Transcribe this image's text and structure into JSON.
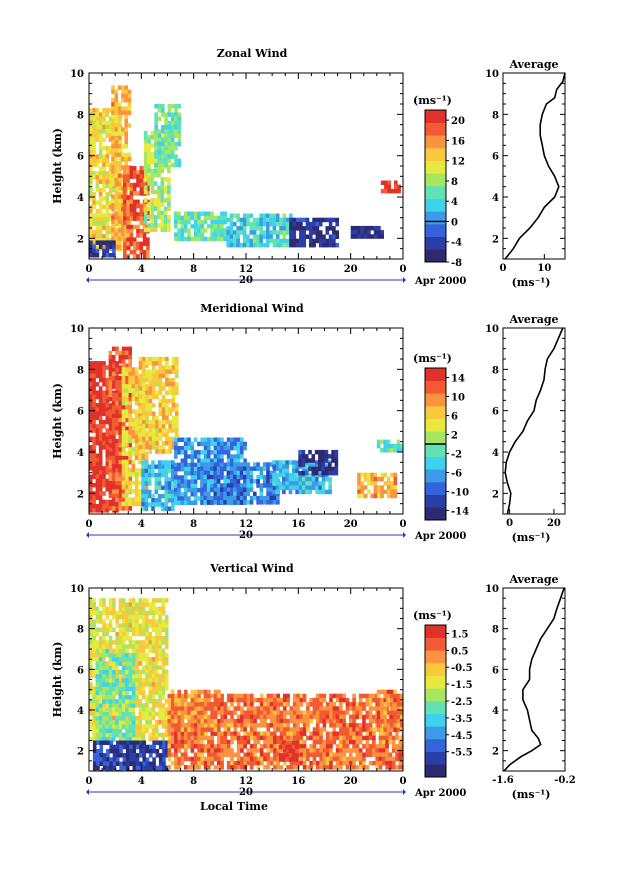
{
  "chart_data": [
    {
      "id": "zonal",
      "type": "heatmap",
      "title": "Zonal Wind",
      "ylabel": "Height (km)",
      "xlim": [
        0,
        24
      ],
      "ylim": [
        1,
        10
      ],
      "xticks": [
        "0",
        "4",
        "8",
        "12",
        "16",
        "20",
        "0"
      ],
      "yticks": [
        "2",
        "4",
        "6",
        "8",
        "10"
      ],
      "date_labels": {
        "day": "20",
        "month": "Apr 2000"
      },
      "colorbar": {
        "unit": "(ms⁻¹)",
        "range": [
          -8,
          22
        ],
        "ticks": [
          "20",
          "16",
          "12",
          "8",
          "4",
          "0",
          "-4",
          "-8"
        ],
        "tick_values": [
          20,
          16,
          12,
          8,
          4,
          0,
          -4,
          -8
        ],
        "marked_value": 0
      },
      "blobs": [
        {
          "t": [
            0,
            2.5
          ],
          "h": [
            1.5,
            8.3
          ],
          "v": 12
        },
        {
          "t": [
            1.7,
            3.2
          ],
          "h": [
            1.5,
            9.4
          ],
          "v": 14
        },
        {
          "t": [
            2.6,
            4.6
          ],
          "h": [
            1.1,
            5.5
          ],
          "v": 19
        },
        {
          "t": [
            4.2,
            6.2
          ],
          "h": [
            2.5,
            7.2
          ],
          "v": 9
        },
        {
          "t": [
            5.0,
            7.0
          ],
          "h": [
            5.5,
            8.5
          ],
          "v": 6
        },
        {
          "t": [
            6.5,
            10.5
          ],
          "h": [
            2.0,
            3.3
          ],
          "v": 6
        },
        {
          "t": [
            10.5,
            15.5
          ],
          "h": [
            1.6,
            3.2
          ],
          "v": 4
        },
        {
          "t": [
            15.3,
            19.0
          ],
          "h": [
            1.6,
            3.0
          ],
          "v": -6
        },
        {
          "t": [
            20.0,
            22.3
          ],
          "h": [
            2.0,
            2.6
          ],
          "v": -7
        },
        {
          "t": [
            0.0,
            2.0
          ],
          "h": [
            1.2,
            1.9
          ],
          "v": -6
        },
        {
          "t": [
            22.3,
            23.8
          ],
          "h": [
            4.2,
            4.8
          ],
          "v": 21
        }
      ],
      "average": {
        "title": "Average",
        "xlabel": "(ms⁻¹)",
        "xlim": [
          0,
          15
        ],
        "xticks": [
          "0",
          "10"
        ],
        "xtick_values": [
          0,
          10
        ],
        "yticks": [
          "2",
          "4",
          "6",
          "8",
          "10"
        ],
        "height": [
          1.0,
          1.5,
          2.0,
          2.5,
          3.0,
          3.5,
          4.0,
          4.5,
          5.0,
          5.5,
          6.0,
          6.5,
          7.0,
          7.5,
          8.0,
          8.5,
          8.8,
          9.2,
          9.6,
          10.0
        ],
        "value": [
          0.5,
          2.5,
          4.0,
          6.5,
          8.5,
          10.0,
          12.5,
          13.5,
          12.5,
          11.0,
          10.0,
          9.5,
          9.0,
          9.0,
          9.5,
          10.5,
          12.5,
          13.0,
          14.5,
          15.0
        ]
      }
    },
    {
      "id": "meridional",
      "type": "heatmap",
      "title": "Meridional Wind",
      "ylabel": "Height (km)",
      "xlim": [
        0,
        24
      ],
      "ylim": [
        1,
        10
      ],
      "xticks": [
        "0",
        "4",
        "8",
        "12",
        "16",
        "20",
        "0"
      ],
      "yticks": [
        "2",
        "4",
        "6",
        "8",
        "10"
      ],
      "date_labels": {
        "day": "20",
        "month": "Apr 2000"
      },
      "colorbar": {
        "unit": "(ms⁻¹)",
        "range": [
          -16,
          16
        ],
        "ticks": [
          "14",
          "10",
          "6",
          "2",
          "-2",
          "-6",
          "-10",
          "-14"
        ],
        "tick_values": [
          14,
          10,
          6,
          2,
          -2,
          -6,
          -10,
          -14
        ],
        "marked_value": 0
      },
      "blobs": [
        {
          "t": [
            0,
            2.5
          ],
          "h": [
            1.2,
            8.4
          ],
          "v": 15
        },
        {
          "t": [
            1.5,
            3.2
          ],
          "h": [
            1.2,
            9.1
          ],
          "v": 13
        },
        {
          "t": [
            2.5,
            4.5
          ],
          "h": [
            1.5,
            8.3
          ],
          "v": 6
        },
        {
          "t": [
            3.8,
            6.8
          ],
          "h": [
            4.0,
            8.6
          ],
          "v": 6
        },
        {
          "t": [
            4.0,
            6.5
          ],
          "h": [
            1.3,
            3.6
          ],
          "v": -5
        },
        {
          "t": [
            6.5,
            12.0
          ],
          "h": [
            1.5,
            4.7
          ],
          "v": -7
        },
        {
          "t": [
            8.5,
            14.5
          ],
          "h": [
            1.5,
            3.5
          ],
          "v": -8
        },
        {
          "t": [
            14.0,
            18.5
          ],
          "h": [
            2.0,
            3.6
          ],
          "v": -5
        },
        {
          "t": [
            16.0,
            19.0
          ],
          "h": [
            3.0,
            4.1
          ],
          "v": -14
        },
        {
          "t": [
            20.5,
            23.5
          ],
          "h": [
            1.8,
            3.0
          ],
          "v": 8
        },
        {
          "t": [
            22.0,
            23.8
          ],
          "h": [
            4.0,
            4.6
          ],
          "v": -2
        }
      ],
      "average": {
        "title": "Average",
        "xlabel": "(ms⁻¹)",
        "xlim": [
          -3,
          25
        ],
        "xticks": [
          "0",
          "20"
        ],
        "xtick_values": [
          0,
          20
        ],
        "yticks": [
          "2",
          "4",
          "6",
          "8",
          "10"
        ],
        "height": [
          1.0,
          1.5,
          2.0,
          2.5,
          3.0,
          3.5,
          4.0,
          4.5,
          5.0,
          5.5,
          6.0,
          6.5,
          7.0,
          7.5,
          8.0,
          8.5,
          9.0,
          9.5,
          10.0
        ],
        "value": [
          -1.0,
          0.0,
          0.5,
          -1.0,
          -2.0,
          -1.5,
          0.0,
          2.5,
          6.0,
          8.0,
          11.0,
          12.0,
          14.0,
          15.5,
          16.0,
          17.0,
          20.0,
          22.0,
          24.0
        ]
      }
    },
    {
      "id": "vertical",
      "type": "heatmap",
      "title": "Vertical Wind",
      "ylabel": "Height (km)",
      "xlabel": "Local Time",
      "xlim": [
        0,
        24
      ],
      "ylim": [
        1,
        10
      ],
      "xticks": [
        "0",
        "4",
        "8",
        "12",
        "16",
        "20",
        "0"
      ],
      "yticks": [
        "2",
        "4",
        "6",
        "8",
        "10"
      ],
      "date_labels": {
        "day": "20",
        "month": "Apr 2000"
      },
      "colorbar": {
        "unit": "(ms⁻¹)",
        "range": [
          -7,
          2
        ],
        "ticks": [
          "1.5",
          "0.5",
          "-0.5",
          "-1.5",
          "-2.5",
          "-3.5",
          "-4.5",
          "-5.5"
        ],
        "tick_values": [
          1.5,
          0.5,
          -0.5,
          -1.5,
          -2.5,
          -3.5,
          -4.5,
          -5.5
        ]
      },
      "blobs": [
        {
          "t": [
            0,
            6.0
          ],
          "h": [
            2.5,
            9.5
          ],
          "v": -1.2
        },
        {
          "t": [
            0.5,
            3.5
          ],
          "h": [
            2.5,
            7.0
          ],
          "v": -2.6
        },
        {
          "t": [
            0.3,
            6.0
          ],
          "h": [
            1.0,
            2.5
          ],
          "v": -6.0
        },
        {
          "t": [
            6.0,
            24.0
          ],
          "h": [
            1.2,
            4.8
          ],
          "v": 0.6
        },
        {
          "t": [
            6.0,
            10.0
          ],
          "h": [
            3.0,
            5.0
          ],
          "v": 0.2
        },
        {
          "t": [
            14.5,
            16.0
          ],
          "h": [
            1.5,
            2.5
          ],
          "v": 1.6
        },
        {
          "t": [
            22.0,
            24.0
          ],
          "h": [
            3.0,
            5.0
          ],
          "v": 0.5
        }
      ],
      "average": {
        "title": "Average",
        "xlabel": "(ms⁻¹)",
        "xlim": [
          -1.6,
          -0.2
        ],
        "xticks": [
          "-1.6",
          "-0.2"
        ],
        "xtick_values": [
          -1.6,
          -0.2
        ],
        "yticks": [
          "2",
          "4",
          "6",
          "8",
          "10"
        ],
        "height": [
          1.0,
          1.3,
          1.7,
          2.0,
          2.3,
          2.6,
          3.0,
          3.5,
          4.0,
          4.5,
          5.0,
          5.5,
          6.0,
          6.5,
          7.0,
          7.5,
          8.0,
          8.5,
          9.0,
          9.5,
          10.0
        ],
        "value": [
          -1.58,
          -1.45,
          -1.2,
          -0.95,
          -0.75,
          -0.8,
          -0.95,
          -1.0,
          -1.05,
          -1.15,
          -1.15,
          -1.0,
          -1.0,
          -0.95,
          -0.85,
          -0.75,
          -0.6,
          -0.45,
          -0.38,
          -0.3,
          -0.22
        ]
      }
    }
  ]
}
